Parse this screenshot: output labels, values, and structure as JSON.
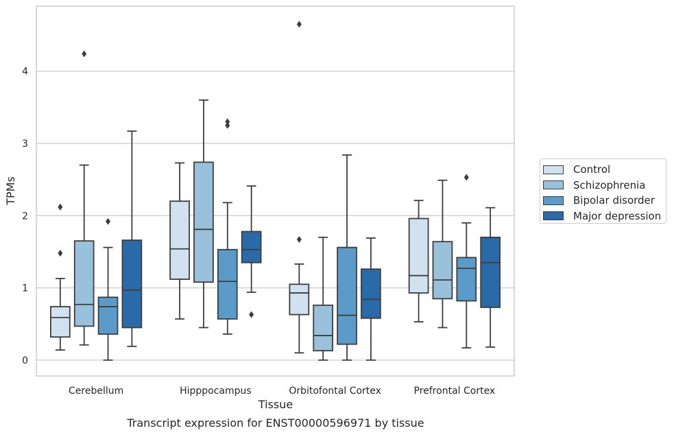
{
  "chart_data": {
    "type": "box",
    "title": "Transcript expression for ENST00000596971 by tissue",
    "xlabel": "Tissue",
    "ylabel": "TPMs",
    "ylim": [
      -0.22,
      4.9
    ],
    "yticks": [
      0,
      1,
      2,
      3,
      4
    ],
    "grid": "horizontal",
    "legend_position": "right",
    "categories": [
      "Cerebellum",
      "Hipppocampus",
      "Orbitofontal Cortex",
      "Prefrontal Cortex"
    ],
    "series": [
      {
        "name": "Control",
        "color": "#d1e1f0",
        "boxes": [
          {
            "whislo": 0.14,
            "q1": 0.32,
            "med": 0.59,
            "q3": 0.74,
            "whishi": 1.13,
            "fliers": [
              1.48,
              2.12
            ]
          },
          {
            "whislo": 0.57,
            "q1": 1.12,
            "med": 1.54,
            "q3": 2.2,
            "whishi": 2.73,
            "fliers": []
          },
          {
            "whislo": 0.1,
            "q1": 0.63,
            "med": 0.93,
            "q3": 1.05,
            "whishi": 1.33,
            "fliers": [
              1.67,
              4.65
            ]
          },
          {
            "whislo": 0.53,
            "q1": 0.93,
            "med": 1.17,
            "q3": 1.96,
            "whishi": 2.21,
            "fliers": []
          }
        ]
      },
      {
        "name": "Schizophrenia",
        "color": "#9ac1db",
        "boxes": [
          {
            "whislo": 0.21,
            "q1": 0.47,
            "med": 0.77,
            "q3": 1.65,
            "whishi": 2.7,
            "fliers": [
              4.24
            ]
          },
          {
            "whislo": 0.45,
            "q1": 1.08,
            "med": 1.81,
            "q3": 2.74,
            "whishi": 3.6,
            "fliers": []
          },
          {
            "whislo": 0.0,
            "q1": 0.13,
            "med": 0.34,
            "q3": 0.76,
            "whishi": 1.7,
            "fliers": []
          },
          {
            "whislo": 0.45,
            "q1": 0.85,
            "med": 1.11,
            "q3": 1.64,
            "whishi": 2.49,
            "fliers": []
          }
        ]
      },
      {
        "name": "Bipolar disorder",
        "color": "#5a9bc9",
        "boxes": [
          {
            "whislo": 0.0,
            "q1": 0.36,
            "med": 0.74,
            "q3": 0.87,
            "whishi": 1.56,
            "fliers": [
              1.92
            ]
          },
          {
            "whislo": 0.36,
            "q1": 0.57,
            "med": 1.09,
            "q3": 1.53,
            "whishi": 2.18,
            "fliers": [
              3.25,
              3.3
            ]
          },
          {
            "whislo": 0.0,
            "q1": 0.22,
            "med": 0.62,
            "q3": 1.56,
            "whishi": 2.84,
            "fliers": []
          },
          {
            "whislo": 0.17,
            "q1": 0.82,
            "med": 1.27,
            "q3": 1.42,
            "whishi": 1.9,
            "fliers": [
              2.53
            ]
          }
        ]
      },
      {
        "name": "Major depression",
        "color": "#2a6aa8",
        "boxes": [
          {
            "whislo": 0.19,
            "q1": 0.45,
            "med": 0.97,
            "q3": 1.66,
            "whishi": 3.17,
            "fliers": []
          },
          {
            "whislo": 0.94,
            "q1": 1.35,
            "med": 1.53,
            "q3": 1.78,
            "whishi": 2.41,
            "fliers": [
              0.63
            ]
          },
          {
            "whislo": 0.0,
            "q1": 0.58,
            "med": 0.84,
            "q3": 1.26,
            "whishi": 1.69,
            "fliers": []
          },
          {
            "whislo": 0.18,
            "q1": 0.73,
            "med": 1.35,
            "q3": 1.7,
            "whishi": 2.11,
            "fliers": []
          }
        ]
      }
    ]
  }
}
